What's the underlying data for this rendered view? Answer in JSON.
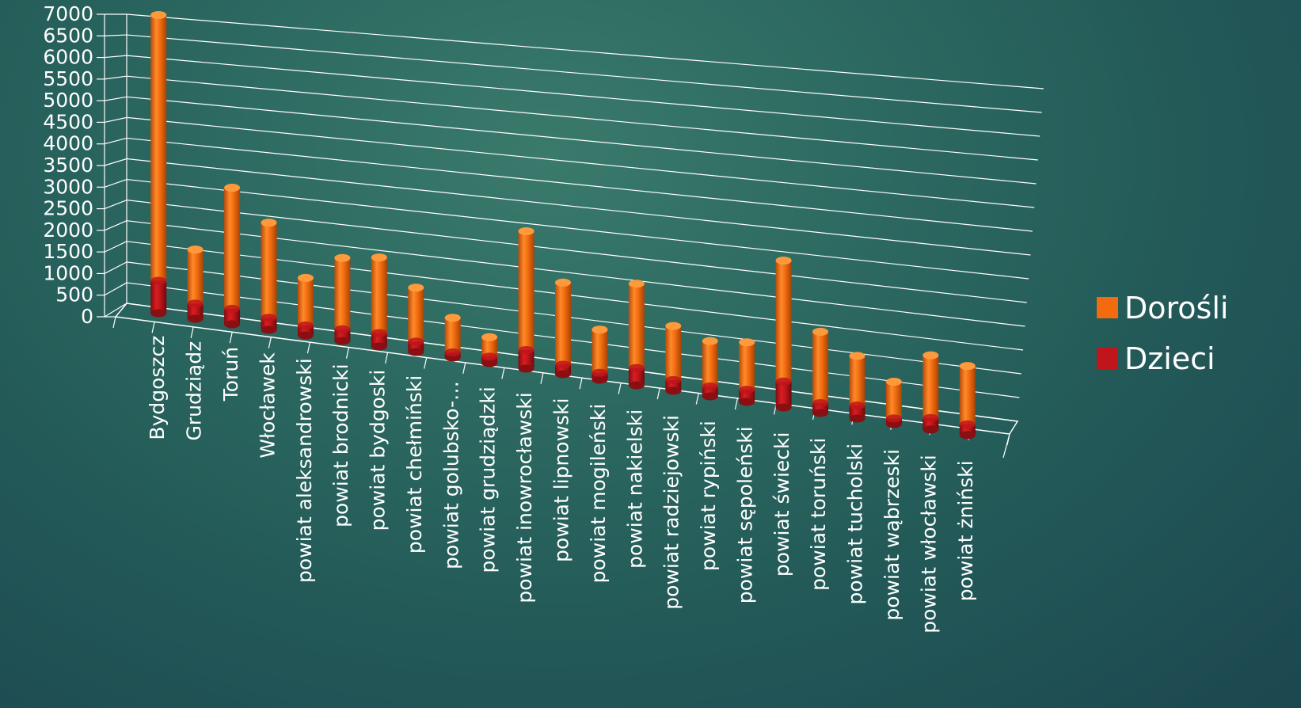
{
  "chart_data": {
    "type": "bar",
    "stacked": true,
    "three_d": true,
    "title": "",
    "xlabel": "",
    "ylabel": "",
    "ylim": [
      0,
      7000
    ],
    "yticks": [
      0,
      500,
      1000,
      1500,
      2000,
      2500,
      3000,
      3500,
      4000,
      4500,
      5000,
      5500,
      6000,
      6500,
      7000
    ],
    "grid": true,
    "legend_position": "right",
    "categories": [
      "Bydgoszcz",
      "Grudziądz",
      "Toruń",
      "Włocławek",
      "powiat aleksandrowski",
      "powiat brodnicki",
      "powiat bydgoski",
      "powiat chełmiński",
      "powiat golubsko-…",
      "powiat grudziądzki",
      "powiat inowrocławski",
      "powiat lipnowski",
      "powiat mogileński",
      "powiat nakielski",
      "powiat radziejowski",
      "powiat rypiński",
      "powiat sępoleński",
      "powiat świecki",
      "powiat toruński",
      "powiat tucholski",
      "powiat wąbrzeski",
      "powiat włocławski",
      "powiat żniński"
    ],
    "series": [
      {
        "name": "Dzieci",
        "color": "#c0151a",
        "values": [
          750,
          350,
          360,
          280,
          230,
          270,
          310,
          240,
          120,
          150,
          430,
          220,
          160,
          400,
          250,
          230,
          280,
          600,
          230,
          300,
          130,
          270,
          250
        ]
      },
      {
        "name": "Dorośli",
        "color": "#f26c0f",
        "values": [
          6150,
          1250,
          2800,
          2200,
          1100,
          1650,
          1750,
          1250,
          800,
          450,
          2750,
          1900,
          1000,
          1950,
          1250,
          1050,
          1100,
          2800,
          1650,
          1150,
          850,
          1450,
          1350
        ]
      }
    ]
  },
  "axis": {
    "y_ticks": [
      "0",
      "500",
      "1000",
      "1500",
      "2000",
      "2500",
      "3000",
      "3500",
      "4000",
      "4500",
      "5000",
      "5500",
      "6000",
      "6500",
      "7000"
    ]
  },
  "legend": [
    {
      "label": "Dorośli",
      "color": "#f26c0f"
    },
    {
      "label": "Dzieci",
      "color": "#c0151a"
    }
  ]
}
